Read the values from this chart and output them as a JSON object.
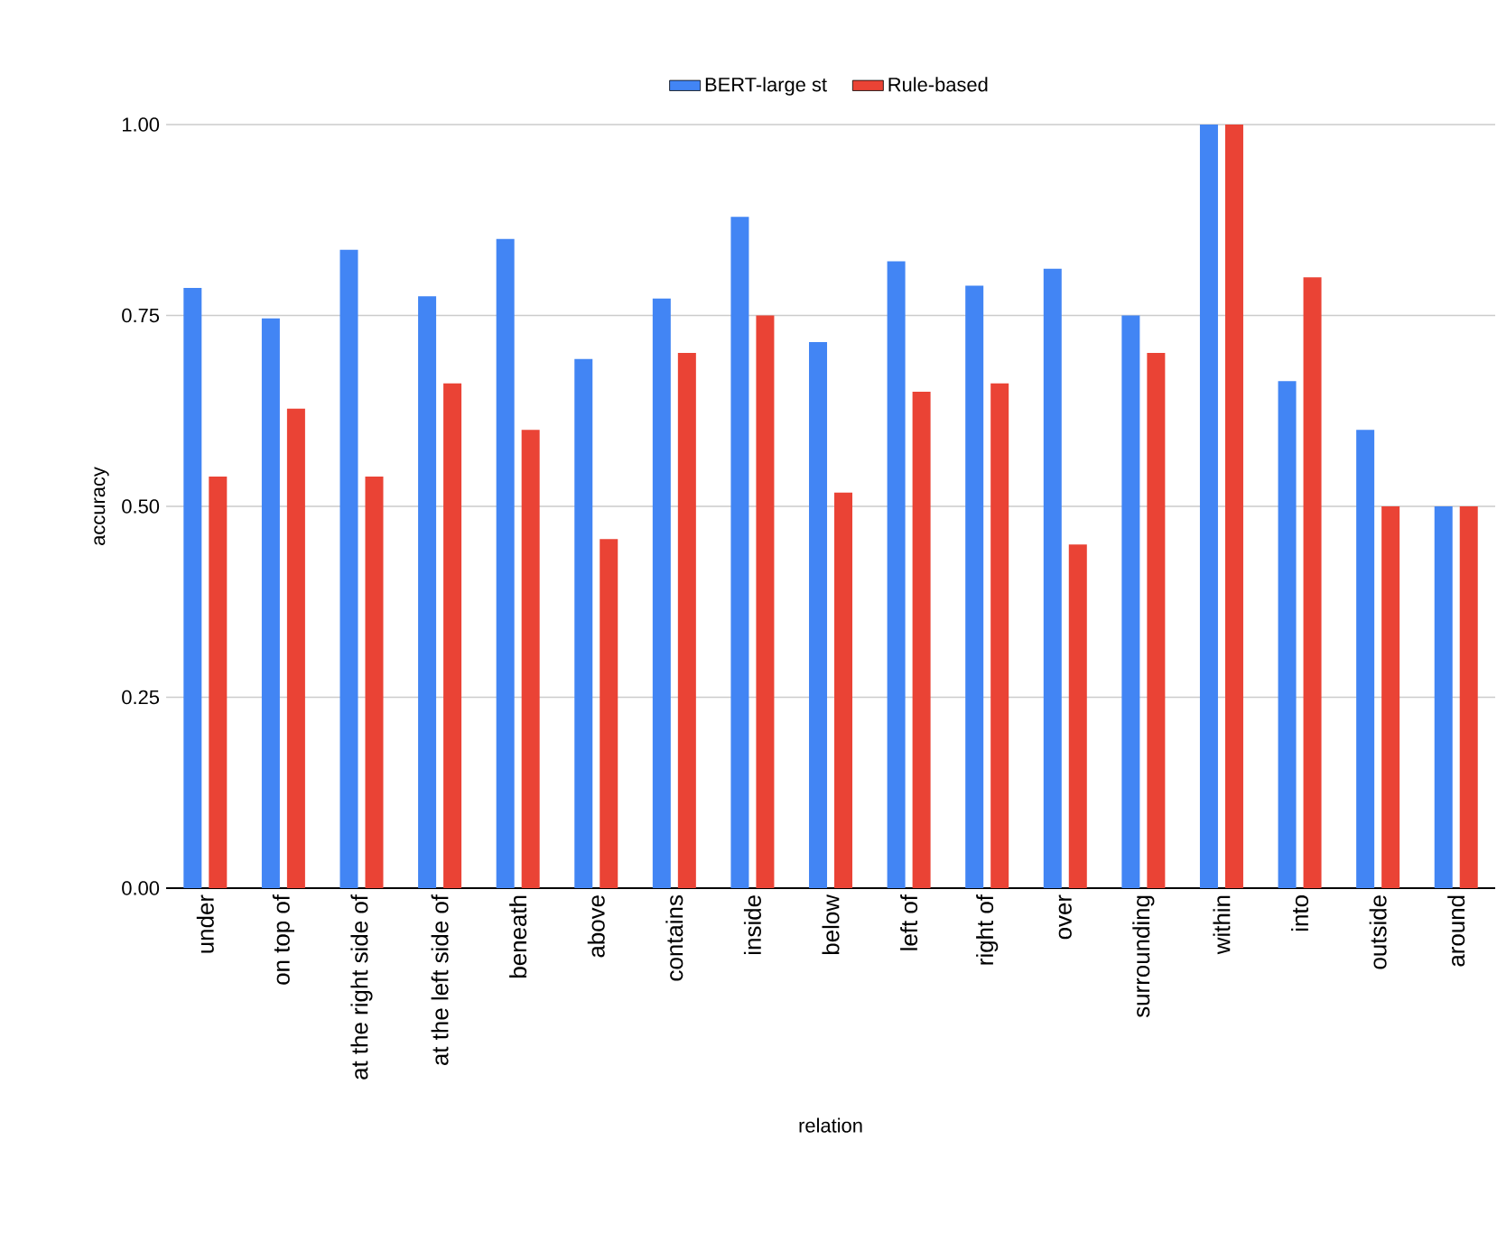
{
  "chart_data": {
    "type": "bar",
    "xlabel": "relation",
    "ylabel": "accuracy",
    "categories": [
      "under",
      "on top of",
      "at the right side of",
      "at the left side of",
      "beneath",
      "above",
      "contains",
      "inside",
      "below",
      "left of",
      "right of",
      "over",
      "surrounding",
      "within",
      "into",
      "outside",
      "around"
    ],
    "series": [
      {
        "name": "BERT-large st",
        "color": "#4285f4",
        "values": [
          0.786,
          0.746,
          0.836,
          0.775,
          0.85,
          0.693,
          0.772,
          0.879,
          0.715,
          0.821,
          0.789,
          0.811,
          0.75,
          1.0,
          0.664,
          0.6,
          0.5
        ]
      },
      {
        "name": "Rule-based",
        "color": "#ea4335",
        "values": [
          0.539,
          0.628,
          0.539,
          0.661,
          0.6,
          0.457,
          0.701,
          0.75,
          0.518,
          0.65,
          0.661,
          0.45,
          0.701,
          1.0,
          0.8,
          0.5,
          0.5
        ]
      }
    ],
    "ylim": [
      0,
      1
    ],
    "yticks": [
      {
        "value": 0,
        "label": "0.00"
      },
      {
        "value": 0.25,
        "label": "0.25"
      },
      {
        "value": 0.5,
        "label": "0.50"
      },
      {
        "value": 0.75,
        "label": "0.75"
      },
      {
        "value": 1,
        "label": "1.00"
      }
    ],
    "grid": "y",
    "legend": "top"
  }
}
